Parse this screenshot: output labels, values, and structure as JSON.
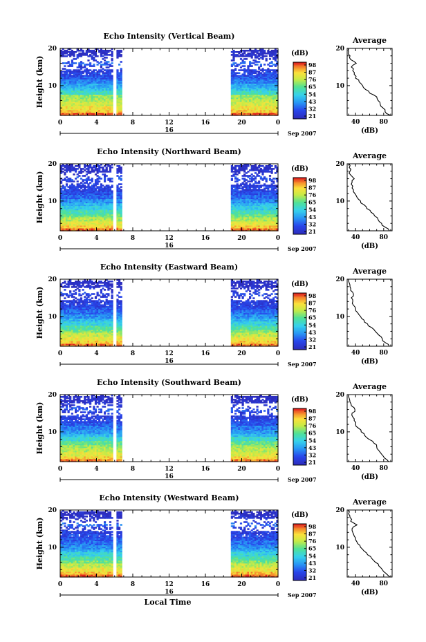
{
  "chart_data": [
    {
      "type": "heatmap",
      "title": "Echo Intensity (Vertical Beam)",
      "ylabel": "Height (km)",
      "ylim": [
        2,
        20
      ],
      "yticks": [
        "20",
        "10"
      ],
      "xticks": [
        "0",
        "4",
        "8",
        "12",
        "16",
        "20",
        "0"
      ],
      "date_ticks": [
        "16"
      ],
      "date_suffix": "Sep 2007",
      "colorbar": {
        "unit": "(dB)",
        "ticks": [
          "98",
          "87",
          "76",
          "65",
          "54",
          "43",
          "32",
          "21"
        ],
        "range": [
          21,
          98
        ]
      },
      "data_segments_local_time": [
        [
          0,
          6.8
        ],
        [
          18.8,
          24
        ]
      ],
      "profile": {
        "title": "Average",
        "xlabel": "(dB)",
        "xticks": [
          "40",
          "80"
        ],
        "xlim": [
          28,
          92
        ],
        "yticks": [
          "20",
          "10"
        ],
        "ylim": [
          2,
          20
        ],
        "heights": [
          2,
          3,
          4,
          5,
          6,
          7,
          8,
          9,
          10,
          11,
          12,
          13,
          14,
          15,
          16,
          17,
          18,
          19,
          20
        ],
        "values": [
          90,
          82,
          79,
          75,
          72,
          70,
          60,
          54,
          50,
          45,
          40,
          38,
          36,
          34,
          41,
          33,
          32,
          30,
          30
        ]
      }
    },
    {
      "type": "heatmap",
      "title": "Echo Intensity (Northward Beam)",
      "ylabel": "Height (km)",
      "ylim": [
        2,
        20
      ],
      "yticks": [
        "20",
        "10"
      ],
      "xticks": [
        "0",
        "4",
        "8",
        "12",
        "16",
        "20",
        "0"
      ],
      "date_ticks": [
        "16"
      ],
      "date_suffix": "Sep 2007",
      "colorbar": {
        "unit": "(dB)",
        "ticks": [
          "98",
          "87",
          "76",
          "65",
          "54",
          "43",
          "32",
          "21"
        ],
        "range": [
          21,
          98
        ]
      },
      "data_segments_local_time": [
        [
          0,
          6.8
        ],
        [
          18.8,
          24
        ]
      ],
      "profile": {
        "title": "Average",
        "xlabel": "(dB)",
        "xticks": [
          "40",
          "80"
        ],
        "xlim": [
          28,
          92
        ],
        "yticks": [
          "20",
          "10"
        ],
        "ylim": [
          2,
          20
        ],
        "heights": [
          2,
          3,
          4,
          5,
          6,
          7,
          8,
          9,
          10,
          11,
          12,
          13,
          14,
          15,
          16,
          17,
          18,
          19,
          20
        ],
        "values": [
          88,
          82,
          77,
          72,
          67,
          62,
          56,
          52,
          47,
          42,
          39,
          37,
          36,
          35,
          38,
          33,
          32,
          31,
          31
        ]
      }
    },
    {
      "type": "heatmap",
      "title": "Echo Intensity (Eastward Beam)",
      "ylabel": "Height (km)",
      "ylim": [
        2,
        20
      ],
      "yticks": [
        "20",
        "10"
      ],
      "xticks": [
        "0",
        "4",
        "8",
        "12",
        "16",
        "20",
        "0"
      ],
      "date_ticks": [
        "16"
      ],
      "date_suffix": "Sep 2007",
      "colorbar": {
        "unit": "(dB)",
        "ticks": [
          "98",
          "87",
          "76",
          "65",
          "54",
          "43",
          "32",
          "21"
        ],
        "range": [
          21,
          98
        ]
      },
      "data_segments_local_time": [
        [
          0,
          6.8
        ],
        [
          18.8,
          24
        ]
      ],
      "profile": {
        "title": "Average",
        "xlabel": "(dB)",
        "xticks": [
          "40",
          "80"
        ],
        "xlim": [
          28,
          92
        ],
        "yticks": [
          "20",
          "10"
        ],
        "ylim": [
          2,
          20
        ],
        "heights": [
          2,
          3,
          4,
          5,
          6,
          7,
          8,
          9,
          10,
          11,
          12,
          13,
          14,
          15,
          16,
          17,
          18,
          19,
          20
        ],
        "values": [
          88,
          82,
          78,
          73,
          68,
          63,
          57,
          52,
          47,
          43,
          40,
          37,
          36,
          34,
          37,
          33,
          32,
          31,
          30
        ]
      }
    },
    {
      "type": "heatmap",
      "title": "Echo Intensity (Southward Beam)",
      "ylabel": "Height (km)",
      "ylim": [
        2,
        20
      ],
      "yticks": [
        "20",
        "10"
      ],
      "xticks": [
        "0",
        "4",
        "8",
        "12",
        "16",
        "20",
        "0"
      ],
      "date_ticks": [
        "16"
      ],
      "date_suffix": "Sep 2007",
      "colorbar": {
        "unit": "(dB)",
        "ticks": [
          "98",
          "87",
          "76",
          "65",
          "54",
          "43",
          "32",
          "21"
        ],
        "range": [
          21,
          98
        ]
      },
      "data_segments_local_time": [
        [
          0,
          6.8
        ],
        [
          18.8,
          24
        ]
      ],
      "profile": {
        "title": "Average",
        "xlabel": "(dB)",
        "xticks": [
          "40",
          "80"
        ],
        "xlim": [
          28,
          92
        ],
        "yticks": [
          "20",
          "10"
        ],
        "ylim": [
          2,
          20
        ],
        "heights": [
          2,
          3,
          4,
          5,
          6,
          7,
          8,
          9,
          10,
          11,
          12,
          13,
          14,
          15,
          16,
          17,
          18,
          19,
          20
        ],
        "values": [
          87,
          81,
          77,
          73,
          70,
          66,
          59,
          53,
          48,
          44,
          40,
          38,
          36,
          35,
          39,
          34,
          32,
          31,
          30
        ]
      }
    },
    {
      "type": "heatmap",
      "title": "Echo Intensity (Westward Beam)",
      "ylabel": "Height (km)",
      "ylim": [
        2,
        20
      ],
      "yticks": [
        "20",
        "10"
      ],
      "xticks": [
        "0",
        "4",
        "8",
        "12",
        "16",
        "20",
        "0"
      ],
      "date_ticks": [
        "16"
      ],
      "date_suffix": "Sep 2007",
      "xlabel": "Local Time",
      "colorbar": {
        "unit": "(dB)",
        "ticks": [
          "98",
          "87",
          "76",
          "65",
          "54",
          "43",
          "32",
          "21"
        ],
        "range": [
          21,
          98
        ]
      },
      "data_segments_local_time": [
        [
          0,
          6.8
        ],
        [
          18.8,
          24
        ]
      ],
      "profile": {
        "title": "Average",
        "xlabel": "(dB)",
        "xticks": [
          "40",
          "80"
        ],
        "xlim": [
          28,
          92
        ],
        "yticks": [
          "20",
          "10"
        ],
        "ylim": [
          2,
          20
        ],
        "heights": [
          2,
          3,
          4,
          5,
          6,
          7,
          8,
          9,
          10,
          11,
          12,
          13,
          14,
          15,
          16,
          17,
          18,
          19,
          20
        ],
        "values": [
          89,
          83,
          78,
          73,
          68,
          63,
          57,
          52,
          47,
          43,
          40,
          38,
          36,
          35,
          42,
          33,
          32,
          30,
          30
        ]
      }
    }
  ]
}
